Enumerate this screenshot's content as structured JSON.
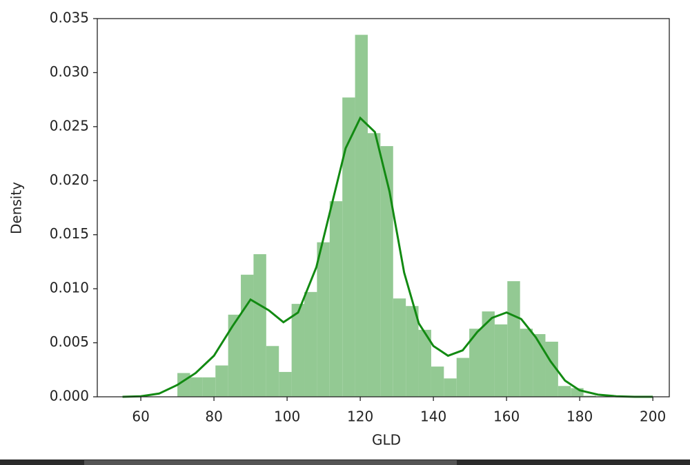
{
  "chart_data": {
    "type": "histogram",
    "x_label": "GLD",
    "y_label": "Density",
    "bins": [
      70.0,
      73.47,
      76.94,
      80.41,
      83.88,
      87.35,
      90.82,
      94.29,
      97.76,
      101.23,
      104.7,
      108.17,
      111.64,
      115.11,
      118.58,
      122.05,
      125.52,
      128.99,
      132.46,
      135.93,
      139.4,
      142.87,
      146.34,
      149.81,
      153.28,
      156.75,
      160.22,
      163.69,
      167.16,
      170.63,
      174.1,
      177.57,
      181.04,
      184.51
    ],
    "values": [
      0.0022,
      0.0018,
      0.0018,
      0.0029,
      0.0076,
      0.0113,
      0.0132,
      0.0047,
      0.0023,
      0.0086,
      0.0097,
      0.0143,
      0.0181,
      0.0277,
      0.0335,
      0.0244,
      0.0232,
      0.0091,
      0.0084,
      0.0062,
      0.0028,
      0.0017,
      0.0036,
      0.0063,
      0.0079,
      0.0067,
      0.0107,
      0.0063,
      0.0058,
      0.0051,
      0.001,
      0.0008,
      0.0001
    ],
    "color": "#93c993",
    "kde": {
      "color": "#128a12",
      "x": [
        55,
        60,
        65,
        70,
        75,
        80,
        85,
        90,
        95,
        99,
        103,
        108,
        112,
        116,
        120,
        124,
        128,
        132,
        136,
        140,
        144,
        148,
        152,
        156,
        160,
        164,
        168,
        172,
        176,
        180,
        185,
        190,
        195,
        200
      ],
      "values": [
        0,
        5e-05,
        0.0003,
        0.0011,
        0.0022,
        0.0038,
        0.0065,
        0.009,
        0.008,
        0.0069,
        0.0078,
        0.012,
        0.0175,
        0.023,
        0.0258,
        0.0245,
        0.019,
        0.0115,
        0.0068,
        0.0047,
        0.0038,
        0.0043,
        0.006,
        0.0073,
        0.0078,
        0.0072,
        0.0055,
        0.0033,
        0.0015,
        0.0006,
        0.0002,
        5e-05,
        0,
        0
      ]
    },
    "xlim": [
      48.1,
      204.5
    ],
    "ylim": [
      0,
      0.035
    ],
    "xticks": [
      60,
      80,
      100,
      120,
      140,
      160,
      180,
      200
    ],
    "yticks": [
      {
        "value": 0,
        "label": "0.000"
      },
      {
        "value": 0.005,
        "label": "0.005"
      },
      {
        "value": 0.01,
        "label": "0.010"
      },
      {
        "value": 0.015,
        "label": "0.015"
      },
      {
        "value": 0.02,
        "label": "0.020"
      },
      {
        "value": 0.025,
        "label": "0.025"
      },
      {
        "value": 0.03,
        "label": "0.030"
      },
      {
        "value": 0.035,
        "label": "0.035"
      }
    ]
  }
}
